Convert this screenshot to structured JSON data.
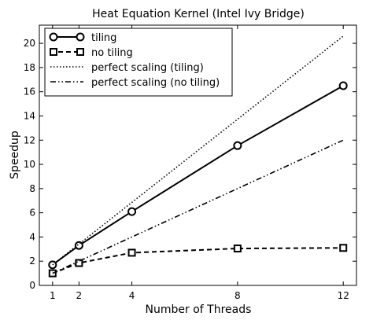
{
  "chart_data": {
    "type": "line",
    "title": "Heat Equation Kernel (Intel Ivy Bridge)",
    "xlabel": "Number of Threads",
    "ylabel": "Speedup",
    "xlim": [
      0.5,
      12.5
    ],
    "ylim": [
      0,
      21.5
    ],
    "xticks": [
      1,
      2,
      4,
      8,
      12
    ],
    "yticks": [
      0,
      2,
      4,
      6,
      8,
      10,
      12,
      14,
      16,
      18,
      20
    ],
    "grid": false,
    "legend_position": "top-left",
    "series": [
      {
        "name": "tiling",
        "x": [
          1,
          2,
          4,
          8,
          12
        ],
        "y": [
          1.7,
          3.3,
          6.1,
          11.55,
          16.5
        ],
        "line_style": "solid",
        "marker": "circle",
        "color": "#000000"
      },
      {
        "name": "no tiling",
        "x": [
          1,
          2,
          4,
          8,
          12
        ],
        "y": [
          1.0,
          1.85,
          2.7,
          3.05,
          3.1
        ],
        "line_style": "dashed",
        "marker": "square",
        "color": "#000000"
      },
      {
        "name": "perfect scaling (tiling)",
        "x": [
          1,
          12
        ],
        "y": [
          1.7,
          20.6
        ],
        "line_style": "dotted",
        "marker": "none",
        "color": "#000000"
      },
      {
        "name": "perfect scaling (no tiling)",
        "x": [
          1,
          12
        ],
        "y": [
          1.0,
          12.0
        ],
        "line_style": "dashdotdot",
        "marker": "none",
        "color": "#000000"
      }
    ]
  }
}
